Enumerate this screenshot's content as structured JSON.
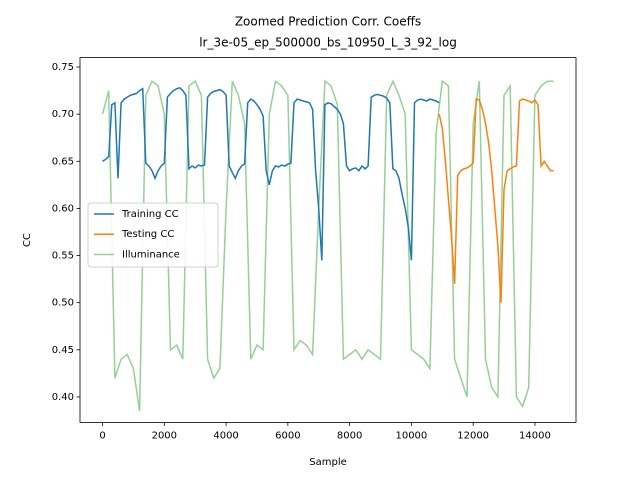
{
  "chart_data": {
    "type": "line",
    "title": "Zoomed Prediction Corr. Coeffs",
    "subtitle": "lr_3e-05_ep_500000_bs_10950_L_3_92_log",
    "xlabel": "Sample",
    "ylabel": "CC",
    "xlim": [
      -730,
      15330
    ],
    "ylim": [
      0.373,
      0.76
    ],
    "xticks": [
      0,
      2000,
      4000,
      6000,
      8000,
      10000,
      12000,
      14000
    ],
    "yticks": [
      {
        "value": 0.4,
        "label": "0.40"
      },
      0.45,
      {
        "value": 0.5,
        "label": "0.50"
      },
      0.55,
      {
        "value": 0.6,
        "label": "0.60"
      },
      0.65,
      {
        "value": 0.7,
        "label": "0.70"
      },
      0.75
    ],
    "legend": "center left",
    "series": [
      {
        "name": "Training CC",
        "color": "#1f77b4",
        "x": [
          0,
          100,
          200,
          300,
          400,
          500,
          600,
          700,
          800,
          900,
          1000,
          1100,
          1200,
          1300,
          1400,
          1500,
          1600,
          1700,
          1800,
          1900,
          2000,
          2100,
          2200,
          2300,
          2400,
          2500,
          2600,
          2700,
          2800,
          2900,
          3000,
          3100,
          3200,
          3300,
          3400,
          3500,
          3600,
          3700,
          3800,
          3900,
          4000,
          4100,
          4200,
          4300,
          4400,
          4500,
          4600,
          4700,
          4800,
          4900,
          5000,
          5100,
          5200,
          5300,
          5400,
          5500,
          5600,
          5700,
          5800,
          5900,
          6000,
          6100,
          6200,
          6300,
          6400,
          6500,
          6600,
          6700,
          6800,
          6900,
          7000,
          7100,
          7200,
          7300,
          7400,
          7500,
          7600,
          7700,
          7800,
          7900,
          8000,
          8100,
          8200,
          8300,
          8400,
          8500,
          8600,
          8700,
          8800,
          8900,
          9000,
          9100,
          9200,
          9300,
          9400,
          9500,
          9600,
          9700,
          9800,
          9900,
          10000,
          10100,
          10200,
          10300,
          10400,
          10500,
          10600,
          10700,
          10800,
          10900
        ],
        "values": [
          0.65,
          0.652,
          0.655,
          0.71,
          0.712,
          0.632,
          0.712,
          0.716,
          0.718,
          0.72,
          0.721,
          0.722,
          0.725,
          0.727,
          0.648,
          0.645,
          0.64,
          0.632,
          0.64,
          0.645,
          0.648,
          0.718,
          0.722,
          0.725,
          0.727,
          0.728,
          0.725,
          0.72,
          0.642,
          0.645,
          0.643,
          0.646,
          0.645,
          0.646,
          0.718,
          0.722,
          0.724,
          0.725,
          0.726,
          0.724,
          0.72,
          0.645,
          0.638,
          0.632,
          0.64,
          0.645,
          0.647,
          0.712,
          0.716,
          0.714,
          0.71,
          0.705,
          0.698,
          0.64,
          0.625,
          0.64,
          0.645,
          0.644,
          0.646,
          0.645,
          0.647,
          0.648,
          0.712,
          0.716,
          0.715,
          0.714,
          0.713,
          0.712,
          0.705,
          0.64,
          0.6,
          0.545,
          0.71,
          0.712,
          0.711,
          0.708,
          0.705,
          0.7,
          0.69,
          0.645,
          0.64,
          0.642,
          0.643,
          0.64,
          0.645,
          0.642,
          0.645,
          0.718,
          0.72,
          0.721,
          0.72,
          0.719,
          0.717,
          0.712,
          0.642,
          0.64,
          0.632,
          0.615,
          0.6,
          0.58,
          0.545,
          0.712,
          0.715,
          0.716,
          0.715,
          0.714,
          0.716,
          0.715,
          0.714,
          0.712
        ]
      },
      {
        "name": "Testing CC",
        "color": "#ff7f0e",
        "x": [
          10900,
          11000,
          11100,
          11200,
          11300,
          11400,
          11500,
          11600,
          11700,
          11800,
          11900,
          12000,
          12100,
          12200,
          12300,
          12400,
          12500,
          12600,
          12700,
          12800,
          12900,
          13000,
          13100,
          13200,
          13300,
          13400,
          13500,
          13600,
          13700,
          13800,
          13900,
          14000,
          14100,
          14200,
          14300,
          14400,
          14500,
          14600
        ],
        "values": [
          0.7,
          0.685,
          0.65,
          0.61,
          0.57,
          0.52,
          0.635,
          0.64,
          0.642,
          0.643,
          0.645,
          0.648,
          0.716,
          0.715,
          0.705,
          0.69,
          0.67,
          0.64,
          0.6,
          0.56,
          0.5,
          0.62,
          0.64,
          0.642,
          0.644,
          0.645,
          0.714,
          0.716,
          0.715,
          0.714,
          0.712,
          0.715,
          0.71,
          0.645,
          0.65,
          0.645,
          0.64,
          0.64
        ]
      },
      {
        "name": "Illuminance",
        "color": "#96d096",
        "x": [
          0,
          200,
          400,
          600,
          800,
          1000,
          1200,
          1400,
          1600,
          1800,
          2000,
          2200,
          2400,
          2600,
          2800,
          3000,
          3200,
          3400,
          3600,
          3800,
          4000,
          4200,
          4400,
          4600,
          4800,
          5000,
          5200,
          5400,
          5600,
          5800,
          6000,
          6200,
          6400,
          6600,
          6800,
          7000,
          7200,
          7400,
          7600,
          7800,
          8000,
          8200,
          8400,
          8600,
          8800,
          9000,
          9200,
          9400,
          9600,
          9800,
          10000,
          10200,
          10400,
          10600,
          10800,
          11000,
          11200,
          11400,
          11600,
          11800,
          12000,
          12200,
          12400,
          12600,
          12800,
          13000,
          13200,
          13400,
          13600,
          13800,
          14000,
          14200,
          14400,
          14600
        ],
        "values": [
          0.7,
          0.725,
          0.42,
          0.44,
          0.445,
          0.43,
          0.385,
          0.72,
          0.735,
          0.73,
          0.7,
          0.45,
          0.455,
          0.44,
          0.73,
          0.735,
          0.72,
          0.44,
          0.42,
          0.43,
          0.6,
          0.735,
          0.72,
          0.69,
          0.44,
          0.455,
          0.45,
          0.7,
          0.735,
          0.73,
          0.72,
          0.45,
          0.46,
          0.455,
          0.445,
          0.6,
          0.735,
          0.73,
          0.71,
          0.44,
          0.445,
          0.45,
          0.44,
          0.45,
          0.445,
          0.44,
          0.72,
          0.735,
          0.72,
          0.7,
          0.45,
          0.445,
          0.44,
          0.43,
          0.68,
          0.735,
          0.73,
          0.44,
          0.42,
          0.4,
          0.69,
          0.735,
          0.44,
          0.41,
          0.4,
          0.72,
          0.73,
          0.4,
          0.39,
          0.41,
          0.72,
          0.73,
          0.735,
          0.735
        ]
      }
    ]
  }
}
